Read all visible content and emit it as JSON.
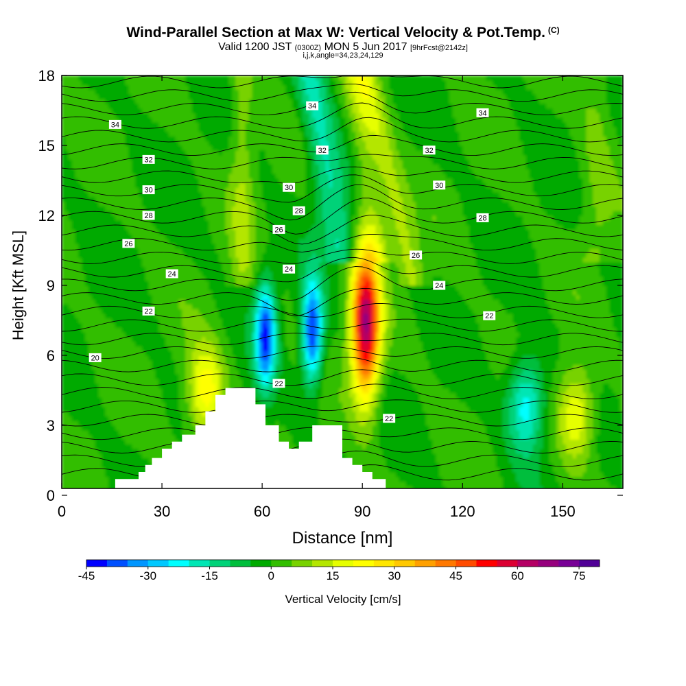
{
  "titles": {
    "main": "Wind-Parallel Section at Max W: Vertical Velocity & Pot.Temp.",
    "copyright": "(C)",
    "valid_prefix": "Valid 1200 JST",
    "valid_utc": "(0300Z)",
    "valid_date": "MON 5 Jun 2017",
    "forecast": "[9hrFcst@2142z]",
    "indices": "i,j,k,angle=34,23,24,129"
  },
  "colorbar": {
    "title": "Vertical Velocity [cm/s]",
    "tick_labels": [
      "-45",
      "-30",
      "-15",
      "0",
      "15",
      "30",
      "45",
      "60",
      "75"
    ],
    "bins": [
      -45,
      -40,
      -35,
      -30,
      -25,
      -20,
      -15,
      -10,
      -5,
      0,
      5,
      10,
      15,
      20,
      25,
      30,
      35,
      40,
      45,
      50,
      55,
      60,
      65,
      70,
      75,
      80
    ],
    "colors": [
      "#0000ff",
      "#0050ff",
      "#0096ff",
      "#00c8ff",
      "#00ffff",
      "#00e6b4",
      "#00d278",
      "#00be3c",
      "#00aa00",
      "#32be00",
      "#78d200",
      "#b4e600",
      "#e6ff00",
      "#ffff00",
      "#ffe600",
      "#ffc800",
      "#ffa000",
      "#ff7800",
      "#ff4b00",
      "#ff0000",
      "#dc0032",
      "#b40064",
      "#96007d",
      "#780096",
      "#500096"
    ]
  },
  "chart_data": {
    "type": "heatmap",
    "xlabel": "Distance [nm]",
    "ylabel": "Height [Kft MSL]",
    "xlim": [
      0,
      168
    ],
    "ylim": [
      0,
      18
    ],
    "xticks": [
      0,
      30,
      60,
      90,
      120,
      150
    ],
    "yticks": [
      0,
      3,
      6,
      9,
      12,
      15,
      18
    ],
    "shaded_field": "Vertical Velocity [cm/s]",
    "contour_field": "potential temperature",
    "contour_labels": [
      {
        "text": "34",
        "x": 16,
        "y": 15.9
      },
      {
        "text": "34",
        "x": 75,
        "y": 16.7
      },
      {
        "text": "34",
        "x": 126,
        "y": 16.4
      },
      {
        "text": "32",
        "x": 26,
        "y": 14.4
      },
      {
        "text": "32",
        "x": 78,
        "y": 14.8
      },
      {
        "text": "32",
        "x": 110,
        "y": 14.8
      },
      {
        "text": "30",
        "x": 26,
        "y": 13.1
      },
      {
        "text": "30",
        "x": 68,
        "y": 13.2
      },
      {
        "text": "30",
        "x": 113,
        "y": 13.3
      },
      {
        "text": "28",
        "x": 26,
        "y": 12.0
      },
      {
        "text": "28",
        "x": 71,
        "y": 12.2
      },
      {
        "text": "28",
        "x": 126,
        "y": 11.9
      },
      {
        "text": "26",
        "x": 20,
        "y": 10.8
      },
      {
        "text": "26",
        "x": 65,
        "y": 11.4
      },
      {
        "text": "26",
        "x": 106,
        "y": 10.3
      },
      {
        "text": "24",
        "x": 33,
        "y": 9.5
      },
      {
        "text": "24",
        "x": 68,
        "y": 9.7
      },
      {
        "text": "24",
        "x": 113,
        "y": 9.0
      },
      {
        "text": "22",
        "x": 26,
        "y": 7.9
      },
      {
        "text": "22",
        "x": 128,
        "y": 7.7
      },
      {
        "text": "22",
        "x": 65,
        "y": 4.8
      },
      {
        "text": "22",
        "x": 98,
        "y": 3.3
      },
      {
        "text": "20",
        "x": 10,
        "y": 5.9
      }
    ],
    "terrain_kft": [
      [
        0,
        0.3
      ],
      [
        16,
        0.3
      ],
      [
        16,
        0.7
      ],
      [
        23,
        0.7
      ],
      [
        23,
        1.0
      ],
      [
        25,
        1.0
      ],
      [
        25,
        1.3
      ],
      [
        27,
        1.3
      ],
      [
        27,
        1.6
      ],
      [
        30,
        1.6
      ],
      [
        30,
        2.0
      ],
      [
        33,
        2.0
      ],
      [
        33,
        2.3
      ],
      [
        36,
        2.3
      ],
      [
        36,
        2.6
      ],
      [
        40,
        2.6
      ],
      [
        40,
        3.0
      ],
      [
        43,
        3.0
      ],
      [
        43,
        3.6
      ],
      [
        46,
        3.6
      ],
      [
        46,
        4.3
      ],
      [
        49,
        4.3
      ],
      [
        49,
        4.6
      ],
      [
        58,
        4.6
      ],
      [
        58,
        3.9
      ],
      [
        61,
        3.9
      ],
      [
        61,
        3.0
      ],
      [
        65,
        3.0
      ],
      [
        65,
        2.3
      ],
      [
        68,
        2.3
      ],
      [
        68,
        2.0
      ],
      [
        71,
        2.0
      ],
      [
        71,
        2.3
      ],
      [
        75,
        2.3
      ],
      [
        75,
        3.0
      ],
      [
        84,
        3.0
      ],
      [
        84,
        1.6
      ],
      [
        87,
        1.6
      ],
      [
        87,
        1.3
      ],
      [
        90,
        1.3
      ],
      [
        90,
        1.0
      ],
      [
        93,
        1.0
      ],
      [
        93,
        0.7
      ],
      [
        97,
        0.7
      ],
      [
        97,
        0.3
      ],
      [
        168,
        0.3
      ]
    ],
    "updrafts": [
      {
        "x": 91,
        "y": 7.3,
        "peak_cms": 65
      },
      {
        "x": 43,
        "y": 4.4,
        "peak_cms": 25
      },
      {
        "x": 154,
        "y": 3.5,
        "peak_cms": 22
      }
    ],
    "downdrafts": [
      {
        "x": 61,
        "y": 6.9,
        "peak_cms": -40
      },
      {
        "x": 75,
        "y": 7.0,
        "peak_cms": -42
      },
      {
        "x": 139,
        "y": 3.9,
        "peak_cms": -25
      }
    ]
  }
}
